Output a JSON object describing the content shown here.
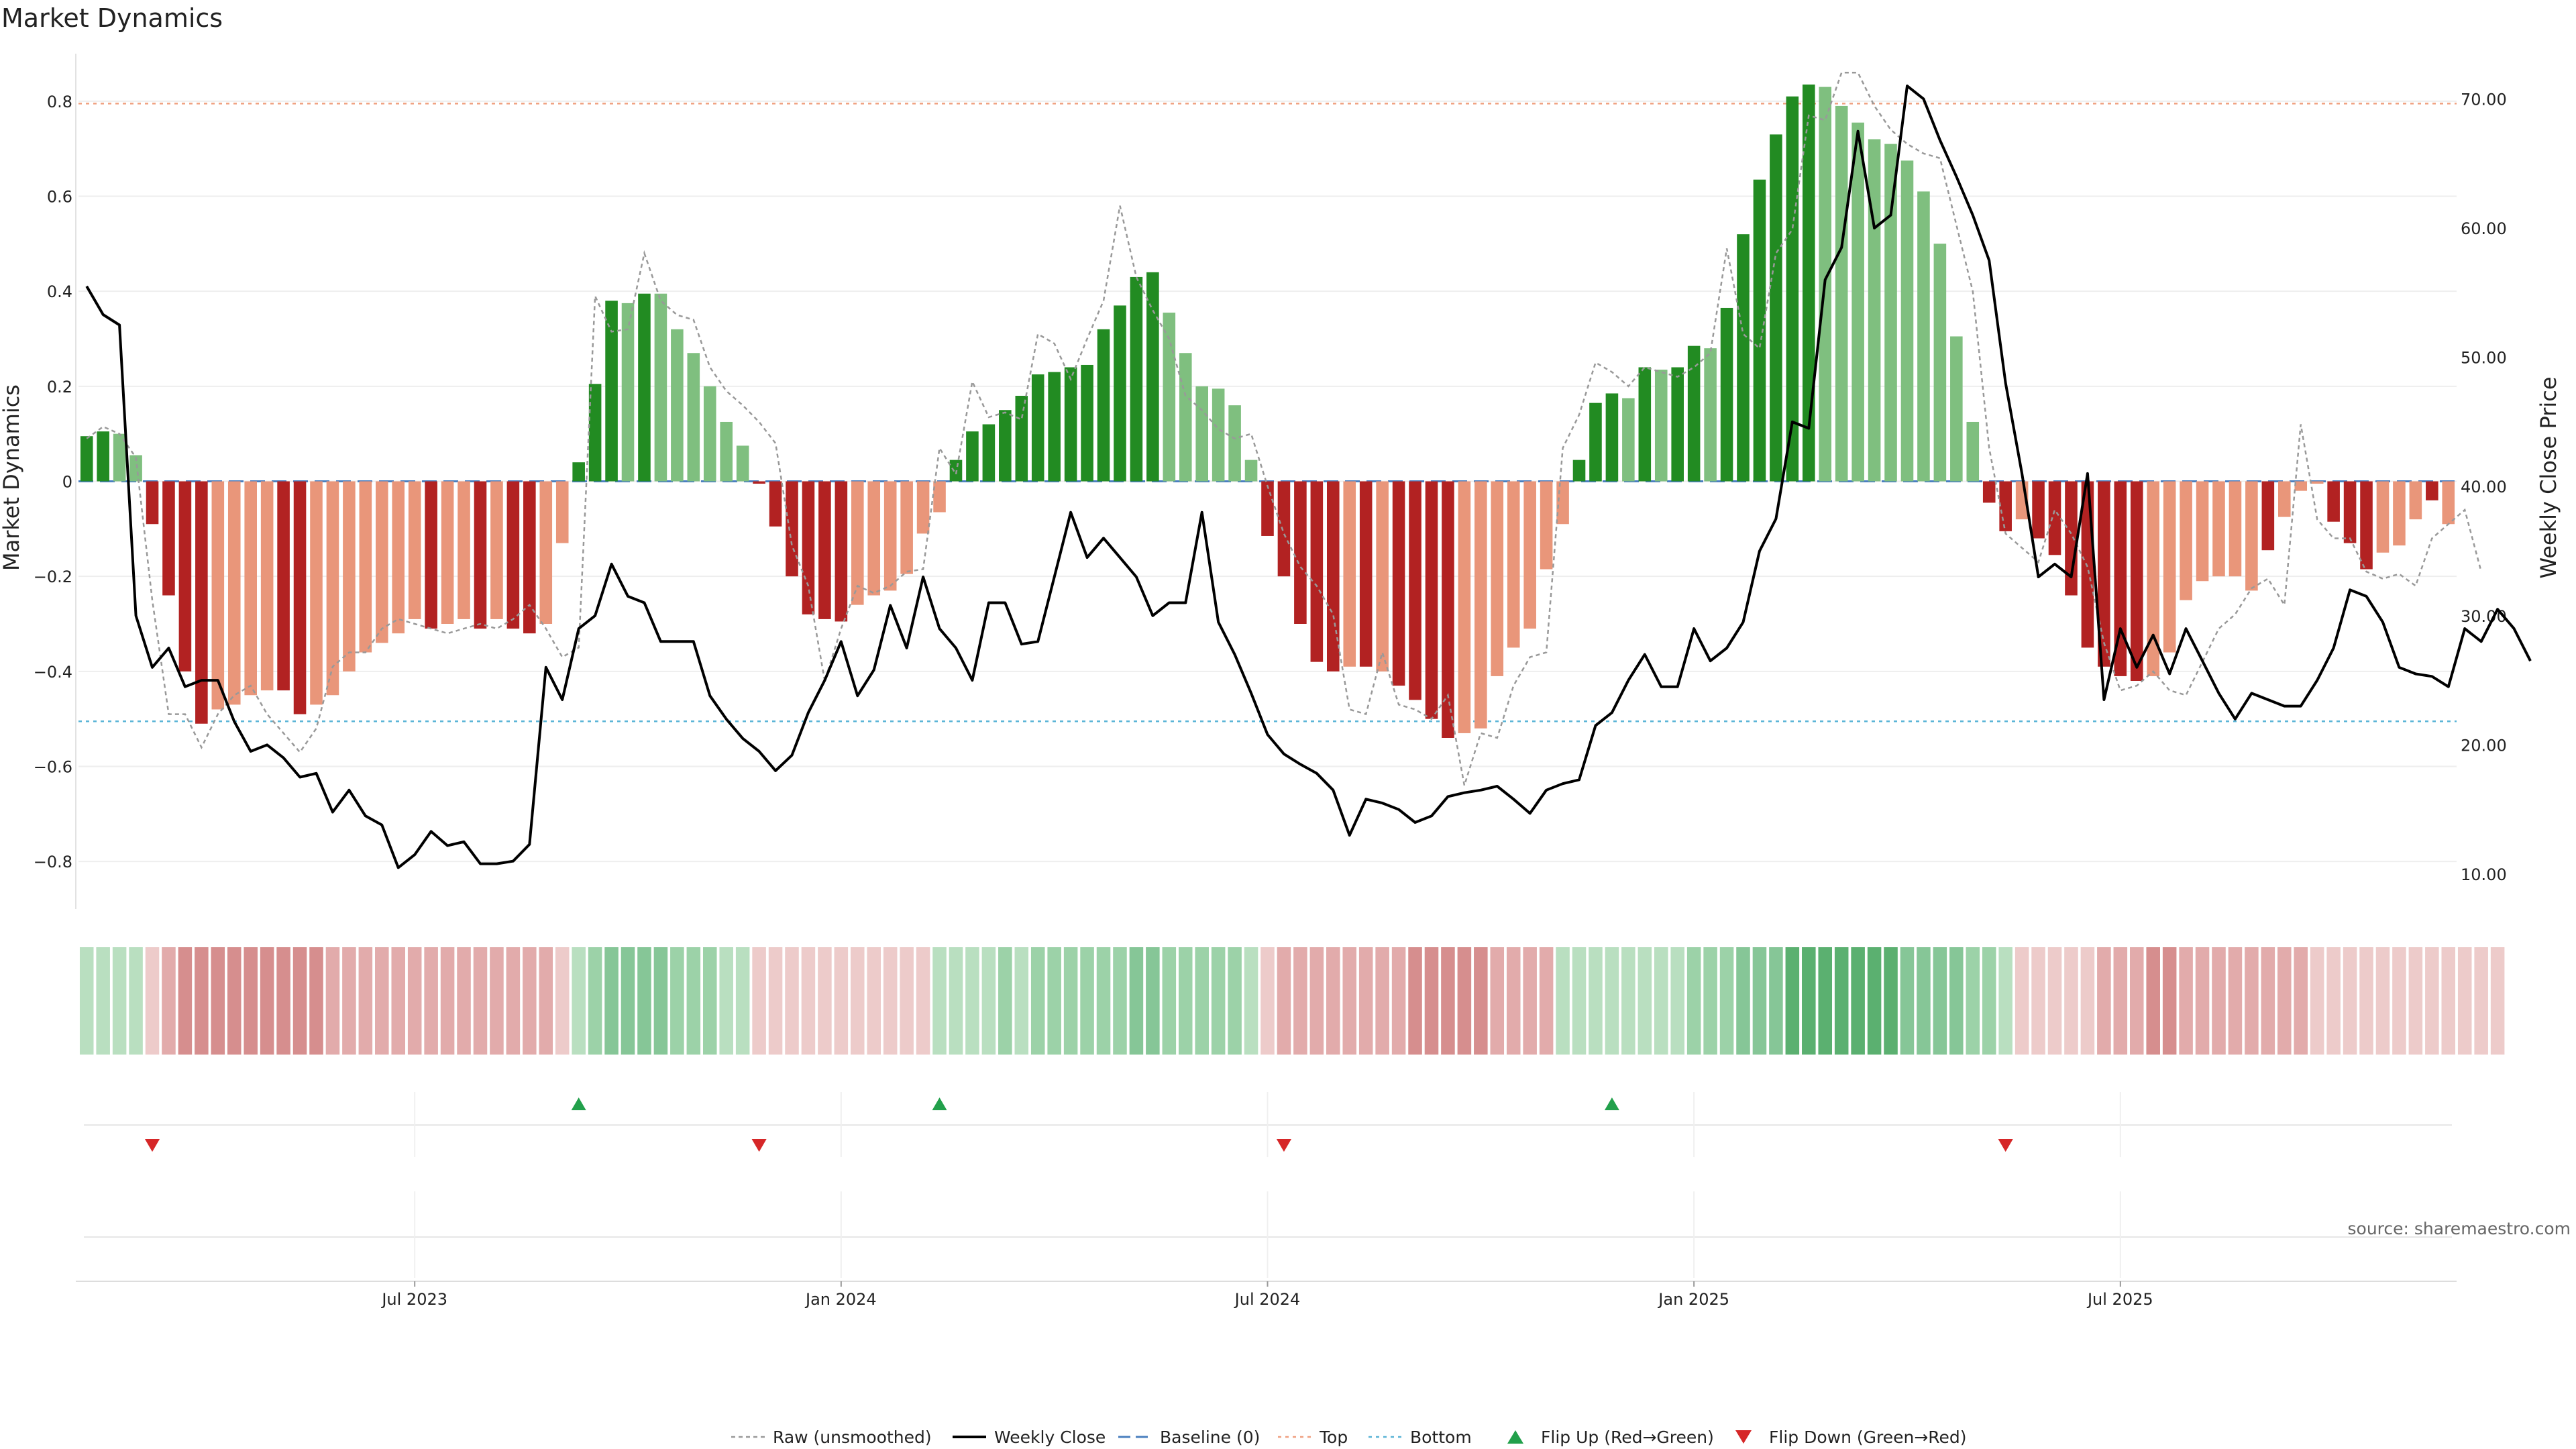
{
  "chart_data": {
    "type": "bar",
    "title": "Market Dynamics",
    "ylabel_left": "Market Dynamics",
    "ylabel_right": "Weekly Close Price",
    "ylim_left": [
      -0.9,
      0.9
    ],
    "ylim_right": [
      7.3,
      73.5
    ],
    "y_ticks_left": [
      "0.8",
      "0.6",
      "0.4",
      "0.2",
      "0",
      "−0.2",
      "−0.4",
      "−0.6",
      "−0.8"
    ],
    "y_tick_values_left": [
      0.8,
      0.6,
      0.4,
      0.2,
      0,
      -0.2,
      -0.4,
      -0.6,
      -0.8
    ],
    "y_ticks_right": [
      "70.00",
      "60.00",
      "50.00",
      "40.00",
      "30.00",
      "20.00",
      "10.00"
    ],
    "y_tick_values_right": [
      70,
      60,
      50,
      40,
      30,
      20,
      10
    ],
    "x_ticks": [
      "Jul 2023",
      "Jan 2024",
      "Jul 2024",
      "Jan 2025",
      "Jul 2025"
    ],
    "x_tick_positions": [
      20.5,
      46.5,
      72.5,
      98.5,
      124.5
    ],
    "top_level": 0.795,
    "bottom_level": -0.505,
    "baseline": 0,
    "histogram": [
      0.095,
      0.105,
      0.1,
      0.055,
      -0.09,
      -0.24,
      -0.4,
      -0.51,
      -0.48,
      -0.47,
      -0.45,
      -0.44,
      -0.44,
      -0.49,
      -0.47,
      -0.45,
      -0.4,
      -0.36,
      -0.34,
      -0.32,
      -0.29,
      -0.31,
      -0.3,
      -0.29,
      -0.31,
      -0.29,
      -0.31,
      -0.32,
      -0.3,
      -0.13,
      0.04,
      0.205,
      0.38,
      0.375,
      0.395,
      0.395,
      0.32,
      0.27,
      0.2,
      0.125,
      0.075,
      -0.005,
      -0.095,
      -0.2,
      -0.28,
      -0.29,
      -0.295,
      -0.26,
      -0.24,
      -0.23,
      -0.195,
      -0.11,
      -0.065,
      0.045,
      0.105,
      0.12,
      0.15,
      0.18,
      0.225,
      0.23,
      0.24,
      0.245,
      0.32,
      0.37,
      0.43,
      0.44,
      0.355,
      0.27,
      0.2,
      0.195,
      0.16,
      0.045,
      -0.115,
      -0.2,
      -0.3,
      -0.38,
      -0.4,
      -0.39,
      -0.39,
      -0.4,
      -0.43,
      -0.46,
      -0.5,
      -0.54,
      -0.53,
      -0.52,
      -0.41,
      -0.35,
      -0.31,
      -0.185,
      -0.09,
      0.045,
      0.165,
      0.185,
      0.175,
      0.24,
      0.235,
      0.24,
      0.285,
      0.28,
      0.365,
      0.52,
      0.635,
      0.73,
      0.81,
      0.835,
      0.83,
      0.79,
      0.755,
      0.72,
      0.71,
      0.675,
      0.61,
      0.5,
      0.305,
      0.125,
      -0.045,
      -0.105,
      -0.08,
      -0.12,
      -0.155,
      -0.24,
      -0.35,
      -0.39,
      -0.41,
      -0.42,
      -0.41,
      -0.36,
      -0.25,
      -0.21,
      -0.2,
      -0.2,
      -0.23,
      -0.145,
      -0.075,
      -0.02,
      -0.005,
      -0.085,
      -0.13,
      -0.185,
      -0.15,
      -0.135,
      -0.08,
      -0.04,
      -0.09
    ],
    "histogram_shade": [
      "d",
      "d",
      "l",
      "l",
      "d",
      "d",
      "d",
      "d",
      "l",
      "l",
      "l",
      "l",
      "d",
      "d",
      "l",
      "l",
      "l",
      "l",
      "l",
      "l",
      "l",
      "d",
      "l",
      "l",
      "d",
      "l",
      "d",
      "d",
      "l",
      "l",
      "d",
      "d",
      "d",
      "l",
      "d",
      "l",
      "l",
      "l",
      "l",
      "l",
      "l",
      "d",
      "d",
      "d",
      "d",
      "d",
      "d",
      "l",
      "l",
      "l",
      "l",
      "l",
      "l",
      "d",
      "d",
      "d",
      "d",
      "d",
      "d",
      "d",
      "d",
      "d",
      "d",
      "d",
      "d",
      "d",
      "l",
      "l",
      "l",
      "l",
      "l",
      "l",
      "d",
      "d",
      "d",
      "d",
      "d",
      "l",
      "d",
      "l",
      "d",
      "d",
      "d",
      "d",
      "l",
      "l",
      "l",
      "l",
      "l",
      "l",
      "l",
      "d",
      "d",
      "d",
      "l",
      "d",
      "l",
      "d",
      "d",
      "l",
      "d",
      "d",
      "d",
      "d",
      "d",
      "d",
      "l",
      "l",
      "l",
      "l",
      "l",
      "l",
      "l",
      "l",
      "l",
      "l",
      "d",
      "d",
      "l",
      "d",
      "d",
      "d",
      "d",
      "d",
      "d",
      "d",
      "l",
      "l",
      "l",
      "l",
      "l",
      "l",
      "l",
      "d",
      "l",
      "l",
      "l",
      "d",
      "d",
      "d",
      "l",
      "l",
      "l",
      "d",
      "l",
      "d"
    ],
    "raw": [
      0.09,
      0.115,
      0.1,
      0.05,
      -0.25,
      -0.49,
      -0.49,
      -0.56,
      -0.49,
      -0.45,
      -0.43,
      -0.49,
      -0.53,
      -0.57,
      -0.52,
      -0.39,
      -0.36,
      -0.36,
      -0.31,
      -0.29,
      -0.3,
      -0.31,
      -0.32,
      -0.31,
      -0.3,
      -0.31,
      -0.29,
      -0.26,
      -0.31,
      -0.37,
      -0.35,
      0.39,
      0.315,
      0.32,
      0.48,
      0.38,
      0.35,
      0.34,
      0.24,
      0.19,
      0.16,
      0.125,
      0.08,
      -0.135,
      -0.22,
      -0.42,
      -0.31,
      -0.22,
      -0.235,
      -0.22,
      -0.19,
      -0.185,
      0.07,
      0.015,
      0.21,
      0.135,
      0.145,
      0.13,
      0.31,
      0.29,
      0.215,
      0.3,
      0.38,
      0.58,
      0.43,
      0.36,
      0.3,
      0.18,
      0.15,
      0.11,
      0.09,
      0.1,
      -0.01,
      -0.11,
      -0.18,
      -0.22,
      -0.28,
      -0.48,
      -0.49,
      -0.36,
      -0.47,
      -0.48,
      -0.5,
      -0.45,
      -0.64,
      -0.53,
      -0.54,
      -0.43,
      -0.37,
      -0.36,
      0.07,
      0.14,
      0.25,
      0.23,
      0.2,
      0.24,
      0.23,
      0.22,
      0.24,
      0.27,
      0.49,
      0.31,
      0.28,
      0.48,
      0.53,
      0.77,
      0.76,
      0.86,
      0.86,
      0.79,
      0.74,
      0.71,
      0.69,
      0.68,
      0.54,
      0.4,
      0.07,
      -0.11,
      -0.14,
      -0.17,
      -0.06,
      -0.11,
      -0.18,
      -0.34,
      -0.44,
      -0.43,
      -0.4,
      -0.44,
      -0.45,
      -0.38,
      -0.31,
      -0.28,
      -0.225,
      -0.205,
      -0.26,
      0.12,
      -0.08,
      -0.12,
      -0.12,
      -0.19,
      -0.205,
      -0.195,
      -0.22,
      -0.12,
      -0.09,
      -0.06,
      -0.19
    ],
    "close": [
      55.5,
      53.3,
      52.5,
      30.0,
      26.0,
      27.5,
      24.5,
      25.0,
      25.0,
      21.8,
      19.5,
      20.0,
      19.0,
      17.5,
      17.8,
      14.8,
      16.5,
      14.5,
      13.8,
      10.5,
      11.5,
      13.3,
      12.2,
      12.5,
      10.8,
      10.8,
      11.0,
      12.3,
      26.0,
      23.5,
      29.0,
      30.0,
      34.0,
      31.5,
      31.0,
      28.0,
      28.0,
      28.0,
      23.8,
      22.0,
      20.5,
      19.5,
      18.0,
      19.2,
      22.5,
      25.0,
      28.0,
      23.8,
      25.8,
      30.8,
      27.5,
      33.0,
      29.0,
      27.5,
      25.0,
      31.0,
      31.0,
      27.8,
      28.0,
      33.0,
      38.0,
      34.5,
      36.0,
      34.5,
      33.0,
      30.0,
      31.0,
      31.0,
      38.0,
      29.5,
      27.0,
      24.0,
      20.8,
      19.3,
      18.5,
      17.8,
      16.5,
      13.0,
      15.8,
      15.5,
      15.0,
      14.0,
      14.5,
      16.0,
      16.3,
      16.5,
      16.8,
      15.8,
      14.7,
      16.5,
      17.0,
      17.3,
      21.5,
      22.5,
      25.0,
      27.0,
      24.5,
      24.5,
      29.0,
      26.5,
      27.5,
      29.5,
      35.0,
      37.5,
      45.0,
      44.5,
      56.0,
      58.5,
      67.5,
      60.0,
      61.0,
      71.0,
      70.0,
      66.8,
      64.0,
      61.0,
      57.5,
      48.0,
      41.0,
      33.0,
      34.0,
      33.0,
      41.0,
      23.5,
      29.0,
      26.0,
      28.5,
      25.5,
      29.0,
      26.5,
      24.0,
      22.0,
      24.0,
      23.5,
      23.0,
      23.0,
      25.0,
      27.5,
      32.0,
      31.5,
      29.5,
      26.0,
      25.5,
      25.3,
      24.5,
      29.0,
      28.0,
      30.5,
      29.0,
      26.5
    ],
    "heat_strips": [
      "g1",
      "g1",
      "g1",
      "g1",
      "r1",
      "r2",
      "r3",
      "r3",
      "r3",
      "r3",
      "r3",
      "r3",
      "r3",
      "r3",
      "r3",
      "r2",
      "r2",
      "r2",
      "r2",
      "r2",
      "r2",
      "r2",
      "r2",
      "r2",
      "r2",
      "r2",
      "r2",
      "r2",
      "r2",
      "r1",
      "g1",
      "g2",
      "g3",
      "g3",
      "g3",
      "g3",
      "g2",
      "g2",
      "g2",
      "g1",
      "g1",
      "r1",
      "r1",
      "r1",
      "r1",
      "r1",
      "r1",
      "r1",
      "r1",
      "r1",
      "r1",
      "r1",
      "g1",
      "g1",
      "g1",
      "g1",
      "g2",
      "g1",
      "g2",
      "g2",
      "g2",
      "g2",
      "g2",
      "g2",
      "g3",
      "g3",
      "g2",
      "g2",
      "g2",
      "g2",
      "g2",
      "g1",
      "r1",
      "r2",
      "r2",
      "r2",
      "r2",
      "r2",
      "r2",
      "r2",
      "r2",
      "r3",
      "r3",
      "r3",
      "r3",
      "r3",
      "r2",
      "r2",
      "r2",
      "r2",
      "g1",
      "g1",
      "g1",
      "g1",
      "g1",
      "g1",
      "g1",
      "g1",
      "g2",
      "g2",
      "g2",
      "g3",
      "g3",
      "g3",
      "g4",
      "g4",
      "g4",
      "g4",
      "g4",
      "g4",
      "g4",
      "g3",
      "g3",
      "g3",
      "g3",
      "g2",
      "g2",
      "g1",
      "r1",
      "r1",
      "r1",
      "r1",
      "r1",
      "r2",
      "r2",
      "r2",
      "r3",
      "r3",
      "r2",
      "r2",
      "r2",
      "r2",
      "r2",
      "r2",
      "r2",
      "r2",
      "r1",
      "r1",
      "r1",
      "r1",
      "r1",
      "r1",
      "r1",
      "r1",
      "r1",
      "r1",
      "r1",
      "r1"
    ],
    "flip_up_weeks": [
      30,
      52,
      93
    ],
    "flip_down_weeks": [
      4,
      41,
      73,
      117
    ],
    "legend": [
      {
        "key": "raw",
        "label": "Raw (unsmoothed)"
      },
      {
        "key": "close",
        "label": "Weekly Close"
      },
      {
        "key": "baseline",
        "label": "Baseline (0)"
      },
      {
        "key": "top",
        "label": "Top"
      },
      {
        "key": "bottom",
        "label": "Bottom"
      },
      {
        "key": "flip_up",
        "label": "Flip Up (Red→Green)"
      },
      {
        "key": "flip_down",
        "label": "Flip Down (Green→Red)"
      }
    ],
    "source": "source: sharemaestro.com"
  },
  "colors": {
    "green_dark": "#228b22",
    "green_light": "#7fbf7f",
    "red_dark": "#b22222",
    "red_light": "#e9967a",
    "raw_line": "#999999",
    "close_line": "#000000",
    "baseline": "#4a7fbf",
    "top_line": "#f0a080",
    "bottom_line": "#5ab4d6",
    "grid": "#eeeeee",
    "flip_up": "#22a04b",
    "flip_down": "#d62728"
  }
}
